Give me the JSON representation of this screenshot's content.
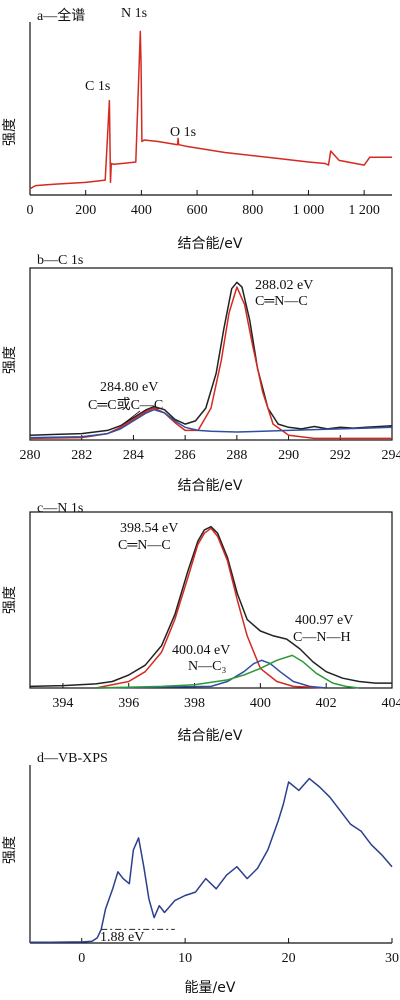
{
  "colors": {
    "red": "#d42a20",
    "black": "#222222",
    "blue": "#2f4f9f",
    "green": "#2d9a3a",
    "navy": "#2c3f8c"
  },
  "chart_data": [
    {
      "type": "line",
      "panel_label": "a—全谱",
      "xlabel": "结合能/eV",
      "ylabel": "强度",
      "xlim": [
        0,
        1300
      ],
      "x_ticks": [
        0,
        200,
        400,
        600,
        800,
        1000,
        1200
      ],
      "x_tick_labels": [
        "0",
        "200",
        "400",
        "600",
        "800",
        "1 000",
        "1 200"
      ],
      "peak_labels": [
        {
          "text": "C 1s",
          "x": 284.8
        },
        {
          "text": "N 1s",
          "x": 398.5
        },
        {
          "text": "O 1s",
          "x": 532.0
        }
      ],
      "series": [
        {
          "color": "red",
          "x": [
            0,
            20,
            60,
            100,
            200,
            270,
            285,
            289,
            292,
            300,
            330,
            380,
            396,
            399,
            402,
            410,
            460,
            530,
            532,
            534,
            560,
            700,
            900,
            1000,
            1060,
            1072,
            1080,
            1110,
            1200,
            1220,
            1300
          ],
          "y": [
            4,
            6,
            6.5,
            7,
            8,
            9.5,
            60,
            8,
            20,
            19.5,
            20,
            21,
            104,
            82,
            34,
            35,
            34,
            32,
            36,
            32,
            31,
            27,
            23,
            21,
            20,
            19,
            28,
            22,
            19,
            24,
            24
          ]
        }
      ]
    },
    {
      "type": "line",
      "panel_label": "b—C 1s",
      "xlabel": "结合能/eV",
      "ylabel": "强度",
      "xlim": [
        280,
        294
      ],
      "x_ticks": [
        280,
        282,
        284,
        286,
        288,
        290,
        292,
        294
      ],
      "x_tick_labels": [
        "280",
        "282",
        "284",
        "286",
        "288",
        "290",
        "292",
        "294"
      ],
      "annotations": [
        {
          "value": "288.02 eV",
          "bond": "C═N—C"
        },
        {
          "value": "284.80 eV",
          "bond": "C═C或C—C"
        }
      ],
      "series": [
        {
          "color": "black",
          "x": [
            280,
            281,
            282,
            283,
            283.5,
            284,
            284.5,
            284.8,
            285.2,
            285.6,
            286,
            286.4,
            286.8,
            287.2,
            287.5,
            287.8,
            288,
            288.2,
            288.5,
            288.8,
            289.2,
            289.6,
            290,
            290.5,
            291,
            291.5,
            292,
            292.5,
            293,
            293.5,
            294
          ],
          "y": [
            3,
            3.5,
            4,
            6,
            9,
            14,
            19,
            21,
            19,
            13,
            10,
            12,
            20,
            42,
            70,
            95,
            99,
            96,
            75,
            45,
            20,
            10,
            8,
            7,
            8.5,
            7,
            8,
            7.5,
            8,
            8.5,
            9
          ]
        },
        {
          "color": "red",
          "x": [
            280,
            282,
            283,
            283.5,
            284,
            284.5,
            284.8,
            285.2,
            285.6,
            286,
            286.5,
            287,
            287.4,
            287.7,
            288,
            288.3,
            288.6,
            289,
            289.4,
            290,
            291,
            292,
            294
          ],
          "y": [
            1,
            1.5,
            4,
            8,
            13,
            18,
            20,
            17,
            11,
            6,
            6,
            20,
            50,
            80,
            96,
            85,
            60,
            30,
            10,
            3,
            1,
            1,
            1
          ]
        },
        {
          "color": "blue",
          "x": [
            280,
            282,
            283,
            283.5,
            284,
            284.5,
            284.8,
            285.2,
            285.6,
            286,
            286.5,
            287,
            288,
            289,
            290,
            291,
            292,
            293,
            294
          ],
          "y": [
            1.5,
            2,
            4,
            7,
            12,
            17,
            19,
            17,
            12,
            8,
            6,
            5.5,
            5,
            5.5,
            6,
            6.5,
            7,
            7.5,
            8
          ]
        }
      ]
    },
    {
      "type": "line",
      "panel_label": "c—N 1s",
      "xlabel": "结合能/eV",
      "ylabel": "强度",
      "xlim": [
        393,
        404
      ],
      "x_ticks": [
        394,
        396,
        398,
        400,
        402,
        404
      ],
      "x_tick_labels": [
        "394",
        "396",
        "398",
        "400",
        "402",
        "404"
      ],
      "annotations": [
        {
          "value": "398.54 eV",
          "bond": "C═N—C"
        },
        {
          "value": "400.04 eV",
          "bond": "N—C₃"
        },
        {
          "value": "400.97 eV",
          "bond": "C—N—H"
        }
      ],
      "series": [
        {
          "color": "black",
          "x": [
            393,
            394,
            395,
            395.5,
            396,
            396.5,
            397,
            397.4,
            397.8,
            398.1,
            398.3,
            398.5,
            398.7,
            399,
            399.3,
            399.6,
            400,
            400.4,
            400.8,
            401.2,
            401.6,
            402,
            402.5,
            403,
            403.5,
            404
          ],
          "y": [
            1,
            1.5,
            2.5,
            4,
            8,
            14,
            26,
            45,
            72,
            90,
            97,
            99,
            95,
            80,
            58,
            42,
            35,
            32,
            30,
            24,
            16,
            10,
            6,
            4,
            3,
            3
          ]
        },
        {
          "color": "red",
          "x": [
            395,
            396,
            396.5,
            397,
            397.4,
            397.8,
            398.1,
            398.3,
            398.5,
            398.7,
            399,
            399.3,
            399.6,
            400,
            400.5,
            401,
            402
          ],
          "y": [
            0,
            4,
            10,
            22,
            42,
            68,
            88,
            95,
            98,
            93,
            78,
            54,
            32,
            12,
            4,
            1,
            0
          ]
        },
        {
          "color": "blue",
          "x": [
            395,
            398.5,
            399,
            399.5,
            399.8,
            400.04,
            400.3,
            400.6,
            401,
            401.5,
            402
          ],
          "y": [
            0,
            1,
            4,
            10,
            15,
            17,
            15,
            10,
            4,
            1,
            0
          ]
        },
        {
          "color": "green",
          "x": [
            395,
            397,
            398,
            399,
            399.5,
            400,
            400.5,
            400.97,
            401.3,
            401.7,
            402.2,
            402.6,
            403
          ],
          "y": [
            0,
            1,
            2,
            5,
            8,
            12,
            17,
            20,
            16,
            9,
            3,
            1,
            0
          ]
        }
      ]
    },
    {
      "type": "line",
      "panel_label": "d—VB-XPS",
      "xlabel": "能量/eV",
      "ylabel": "强度",
      "xlim": [
        -5,
        30
      ],
      "x_ticks": [
        0,
        10,
        20,
        30
      ],
      "x_tick_labels": [
        "0",
        "10",
        "20",
        "30"
      ],
      "annotations": [
        {
          "value": "1.88 eV"
        }
      ],
      "series": [
        {
          "color": "navy",
          "x": [
            -5,
            -3,
            -1,
            0,
            1,
            1.5,
            1.88,
            2.3,
            3,
            3.5,
            4,
            4.6,
            5,
            5.5,
            6,
            6.5,
            7,
            7.5,
            8,
            9,
            10,
            11,
            12,
            13,
            14,
            15,
            16,
            17,
            18,
            19,
            19.5,
            20,
            21,
            22,
            23,
            24,
            25,
            26,
            27,
            28,
            29,
            30
          ],
          "y": [
            0.5,
            0.5,
            0.6,
            0.6,
            1,
            3,
            8,
            20,
            32,
            42,
            38,
            35,
            55,
            62,
            45,
            26,
            15,
            22,
            18,
            25,
            28,
            30,
            38,
            32,
            40,
            45,
            38,
            44,
            55,
            72,
            82,
            95,
            90,
            97,
            92,
            86,
            78,
            70,
            66,
            58,
            52,
            45
          ]
        },
        {
          "color": "black",
          "dashed": true,
          "x": [
            1.88,
            9
          ],
          "y": [
            8,
            8
          ]
        }
      ]
    }
  ]
}
